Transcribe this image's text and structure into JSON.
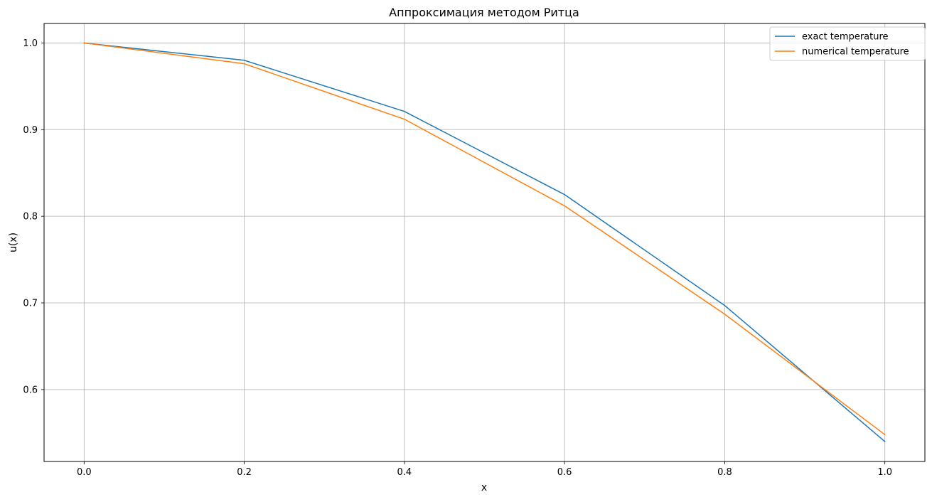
{
  "chart_data": {
    "type": "line",
    "title": "Аппроксимация методом Ритца",
    "xlabel": "x",
    "ylabel": "u(x)",
    "xlim": [
      -0.05,
      1.05
    ],
    "ylim": [
      0.517,
      1.0225
    ],
    "xticks": [
      "0.0",
      "0.2",
      "0.4",
      "0.6",
      "0.8",
      "1.0"
    ],
    "xtick_values": [
      0.0,
      0.2,
      0.4,
      0.6,
      0.8,
      1.0
    ],
    "yticks": [
      "0.6",
      "0.7",
      "0.8",
      "0.9",
      "1.0"
    ],
    "ytick_values": [
      0.6,
      0.7,
      0.8,
      0.9,
      1.0
    ],
    "grid": true,
    "legend_position": "top-right",
    "x": [
      0.0,
      0.2,
      0.4,
      0.6,
      0.8,
      1.0
    ],
    "series": [
      {
        "name": "exact temperature",
        "color": "#1f77b4",
        "values": [
          1.0,
          0.98,
          0.921,
          0.825,
          0.697,
          0.54
        ]
      },
      {
        "name": "numerical temperature",
        "color": "#ff7f0e",
        "values": [
          1.0,
          0.976,
          0.912,
          0.812,
          0.687,
          0.548
        ]
      }
    ]
  }
}
